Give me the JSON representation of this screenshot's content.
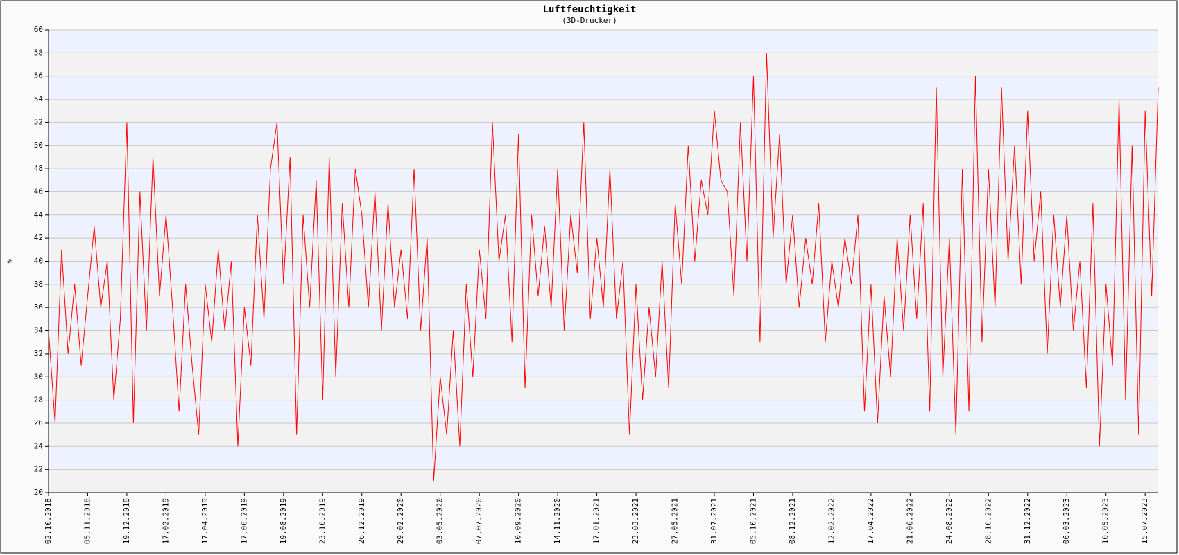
{
  "chart_data": {
    "type": "line",
    "title": "Luftfeuchtigkeit",
    "subtitle": "(3D-Drucker)",
    "y_label": "%",
    "categories": [
      "02.10.2018",
      null,
      null,
      null,
      null,
      null,
      "05.11.2018",
      null,
      null,
      null,
      null,
      null,
      "19.12.2018",
      null,
      null,
      null,
      null,
      null,
      "17.02.2019",
      null,
      null,
      null,
      null,
      null,
      "17.04.2019",
      null,
      null,
      null,
      null,
      null,
      "17.06.2019",
      null,
      null,
      null,
      null,
      null,
      "19.08.2019",
      null,
      null,
      null,
      null,
      null,
      "23.10.2019",
      null,
      null,
      null,
      null,
      null,
      "26.12.2019",
      null,
      null,
      null,
      null,
      null,
      "29.02.2020",
      null,
      null,
      null,
      null,
      null,
      "03.05.2020",
      null,
      null,
      null,
      null,
      null,
      "07.07.2020",
      null,
      null,
      null,
      null,
      null,
      "10.09.2020",
      null,
      null,
      null,
      null,
      null,
      "14.11.2020",
      null,
      null,
      null,
      null,
      null,
      "17.01.2021",
      null,
      null,
      null,
      null,
      null,
      "23.03.2021",
      null,
      null,
      null,
      null,
      null,
      "27.05.2021",
      null,
      null,
      null,
      null,
      null,
      "31.07.2021",
      null,
      null,
      null,
      null,
      null,
      "05.10.2021",
      null,
      null,
      null,
      null,
      null,
      "08.12.2021",
      null,
      null,
      null,
      null,
      null,
      "12.02.2022",
      null,
      null,
      null,
      null,
      null,
      "17.04.2022",
      null,
      null,
      null,
      null,
      null,
      "21.06.2022",
      null,
      null,
      null,
      null,
      null,
      "24.08.2022",
      null,
      null,
      null,
      null,
      null,
      "28.10.2022",
      null,
      null,
      null,
      null,
      null,
      "31.12.2022",
      null,
      null,
      null,
      null,
      null,
      "06.03.2023",
      null,
      null,
      null,
      null,
      null,
      "10.05.2023",
      null,
      null,
      null,
      null,
      null,
      "15.07.2023",
      null,
      null
    ],
    "values": [
      34,
      26,
      41,
      32,
      38,
      31,
      37,
      43,
      36,
      40,
      28,
      35,
      52,
      26,
      46,
      34,
      49,
      37,
      44,
      36,
      27,
      38,
      31,
      25,
      38,
      33,
      41,
      34,
      40,
      24,
      36,
      31,
      44,
      35,
      48,
      52,
      38,
      49,
      25,
      44,
      36,
      47,
      28,
      49,
      30,
      45,
      36,
      48,
      44,
      36,
      46,
      34,
      45,
      36,
      41,
      35,
      48,
      34,
      42,
      21,
      30,
      25,
      34,
      24,
      38,
      30,
      41,
      35,
      52,
      40,
      44,
      33,
      51,
      29,
      44,
      37,
      43,
      36,
      48,
      34,
      44,
      39,
      52,
      35,
      42,
      36,
      48,
      35,
      40,
      25,
      38,
      28,
      36,
      30,
      40,
      29,
      45,
      38,
      50,
      40,
      47,
      44,
      53,
      47,
      46,
      37,
      52,
      40,
      56,
      33,
      58,
      42,
      51,
      38,
      44,
      36,
      42,
      38,
      45,
      33,
      40,
      36,
      42,
      38,
      44,
      27,
      38,
      26,
      37,
      30,
      42,
      34,
      44,
      35,
      45,
      27,
      55,
      30,
      42,
      25,
      48,
      27,
      56,
      33,
      48,
      36,
      55,
      40,
      50,
      38,
      53,
      40,
      46,
      32,
      44,
      36,
      44,
      34,
      40,
      29,
      45,
      24,
      38,
      31,
      54,
      28,
      50,
      25,
      53,
      37,
      55
    ],
    "color": "#ff0000",
    "ylim": [
      20,
      60
    ],
    "yticks": [
      20,
      22,
      24,
      26,
      28,
      30,
      32,
      34,
      36,
      38,
      40,
      42,
      44,
      46,
      48,
      50,
      52,
      54,
      56,
      58,
      60
    ],
    "grid": true
  }
}
